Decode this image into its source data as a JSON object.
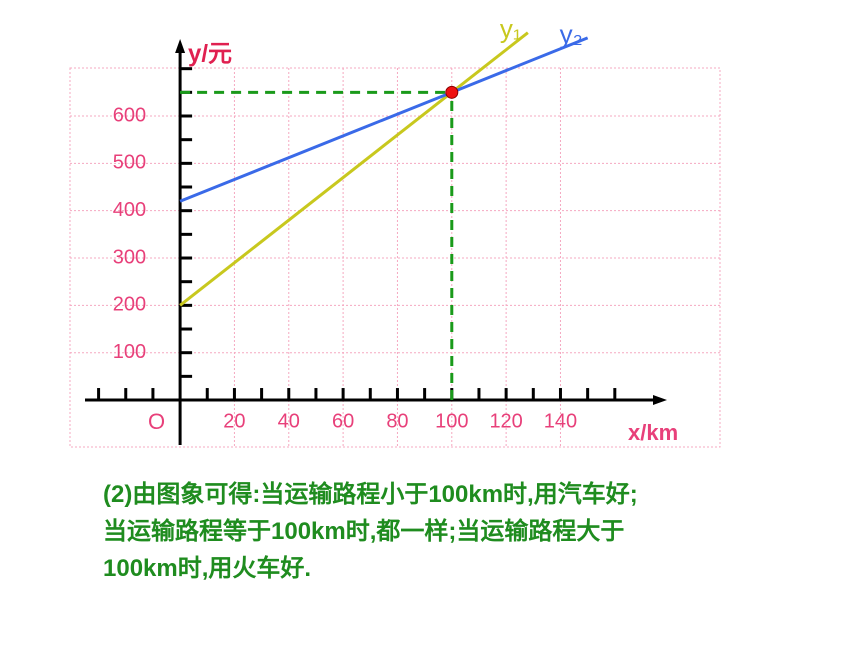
{
  "chart_data": {
    "type": "line",
    "y_label": "y/元",
    "x_label": "x/km",
    "origin_label": "O",
    "xlim": [
      -35,
      177
    ],
    "ylim": [
      -95,
      750
    ],
    "xticks": [
      20,
      40,
      60,
      80,
      100,
      120,
      140
    ],
    "yticks": [
      100,
      200,
      300,
      400,
      500,
      600
    ],
    "xminorticks": [
      -30,
      -20,
      -10,
      10,
      30,
      50,
      70,
      90,
      110,
      130,
      150,
      160
    ],
    "yminorticks": [
      50,
      150,
      250,
      350,
      450,
      550,
      650,
      700
    ],
    "grid": true,
    "series": [
      {
        "name": "y₁",
        "color": "#c8c81e",
        "x": [
          0,
          100,
          128
        ],
        "values": [
          200,
          650,
          776
        ]
      },
      {
        "name": "y₂",
        "color": "#3a6ae8",
        "x": [
          0,
          100,
          150
        ],
        "values": [
          420,
          650,
          765
        ]
      }
    ],
    "point": {
      "x": 100,
      "y": 650,
      "color": "#ee1111"
    }
  },
  "conclusion": [
    "(2)由图象可得:当运输路程小于100km时,用汽车好;",
    "当运输路程等于100km时,都一样;当运输路程大于",
    "100km时,用火车好."
  ]
}
